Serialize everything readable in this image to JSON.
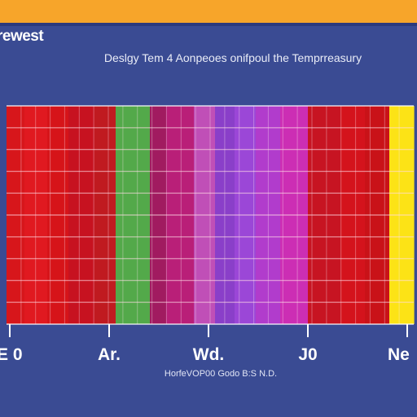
{
  "app": {
    "title": "rewest"
  },
  "chart_data": {
    "type": "heatmap",
    "title": "Deslgy Tem 4 Aonpeoes onifpoul the Temprreasury",
    "categories": [
      "E 0",
      "Ar.",
      "Wd.",
      "J0",
      "Ne"
    ],
    "bands": [
      {
        "color": "#d7161b"
      },
      {
        "color": "#e01920"
      },
      {
        "color": "#d61419"
      },
      {
        "color": "#c71220"
      },
      {
        "color": "#c01a20"
      },
      {
        "color": "#53a94a"
      },
      {
        "color": "#a11b60"
      },
      {
        "color": "#b91f78"
      },
      {
        "color": "#c04fb7"
      },
      {
        "color": "#8a3fc9"
      },
      {
        "color": "#9b47d7"
      },
      {
        "color": "#b13ccc"
      },
      {
        "color": "#cc2eb4"
      },
      {
        "color": "#c71422"
      },
      {
        "color": "#d4131c"
      },
      {
        "color": "#c91218"
      },
      {
        "color": "#fce316"
      }
    ],
    "grid": true,
    "footer": "HorfeVOP00 Godo B:S N.D."
  }
}
